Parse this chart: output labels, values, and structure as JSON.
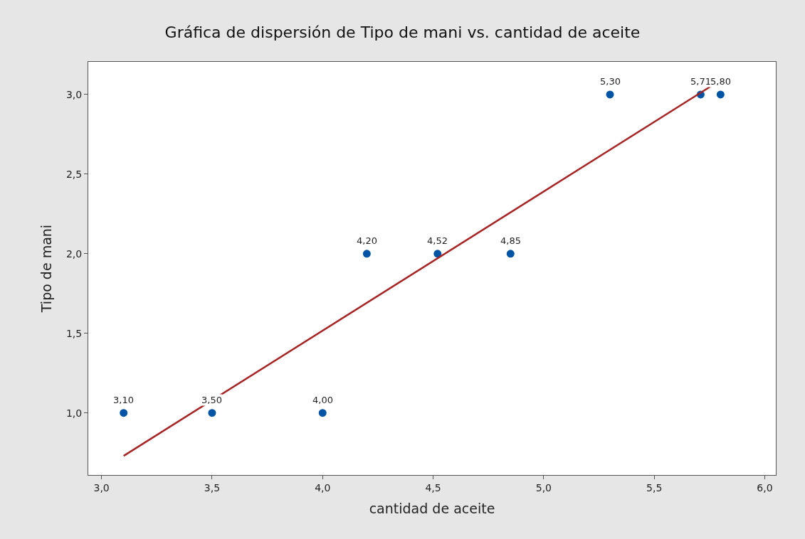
{
  "chart_data": {
    "type": "scatter",
    "title": "Gráfica de dispersión de Tipo de mani vs. cantidad de aceite",
    "xlabel": "cantidad de aceite",
    "ylabel": "Tipo de mani",
    "x": [
      3.1,
      3.5,
      4.0,
      4.2,
      4.52,
      4.85,
      5.3,
      5.71,
      5.8
    ],
    "series": [
      {
        "color": "#0054a6",
        "marker": "circle",
        "values": [
          1,
          1,
          1,
          2,
          2,
          2,
          3,
          3,
          3
        ]
      },
      {
        "type": "line",
        "color": "#a82424",
        "x": [
          3.1,
          5.8
        ],
        "values": [
          0.73,
          3.09
        ]
      }
    ],
    "xlim": [
      2.94,
      6.05
    ],
    "ylim": [
      0.61,
      3.205
    ],
    "xticks": [
      {
        "value": 3.0,
        "label": "3,0"
      },
      {
        "value": 3.5,
        "label": "3,5"
      },
      {
        "value": 4.0,
        "label": "4,0"
      },
      {
        "value": 4.5,
        "label": "4,5"
      },
      {
        "value": 5.0,
        "label": "5,0"
      },
      {
        "value": 5.5,
        "label": "5,5"
      },
      {
        "value": 6.0,
        "label": "6,0"
      }
    ],
    "yticks": [
      {
        "value": 1.0,
        "label": "1,0"
      },
      {
        "value": 1.5,
        "label": "1,5"
      },
      {
        "value": 2.0,
        "label": "2,0"
      },
      {
        "value": 2.5,
        "label": "2,5"
      },
      {
        "value": 3.0,
        "label": "3,0"
      }
    ],
    "annotations": [
      {
        "text": "3,10",
        "x": 3.1,
        "y": 1
      },
      {
        "text": "3,50",
        "x": 3.5,
        "y": 1
      },
      {
        "text": "4,00",
        "x": 4.0,
        "y": 1
      },
      {
        "text": "4,20",
        "x": 4.2,
        "y": 2
      },
      {
        "text": "4,52",
        "x": 4.52,
        "y": 2
      },
      {
        "text": "4,85",
        "x": 4.85,
        "y": 2
      },
      {
        "text": "5,30",
        "x": 5.3,
        "y": 3
      },
      {
        "text": "5,71",
        "x": 5.71,
        "y": 3
      },
      {
        "text": "5,80",
        "x": 5.8,
        "y": 3
      }
    ],
    "tick_labels": true
  }
}
